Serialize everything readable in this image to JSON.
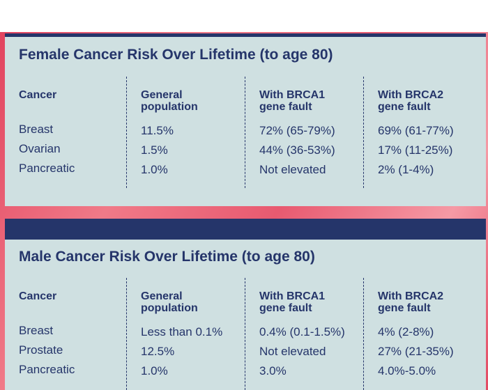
{
  "female": {
    "title": "Female Cancer Risk Over Lifetime (to age 80)",
    "headers": [
      "Cancer",
      "General population",
      "With BRCA1 gene fault",
      "With BRCA2 gene fault"
    ],
    "rows": [
      {
        "cancer": "Breast",
        "general": "11.5%",
        "brca1": "72% (65-79%)",
        "brca2": "69% (61-77%)"
      },
      {
        "cancer": "Ovarian",
        "general": "1.5%",
        "brca1": "44% (36-53%)",
        "brca2": "17% (11-25%)"
      },
      {
        "cancer": "Pancreatic",
        "general": "1.0%",
        "brca1": "Not elevated",
        "brca2": "2% (1-4%)"
      }
    ]
  },
  "male": {
    "title": "Male Cancer Risk Over Lifetime (to age 80)",
    "headers": [
      "Cancer",
      "General population",
      "With BRCA1 gene fault",
      "With BRCA2 gene fault"
    ],
    "rows": [
      {
        "cancer": "Breast",
        "general": "Less than 0.1%",
        "brca1": "0.4% (0.1-1.5%)",
        "brca2": "4% (2-8%)"
      },
      {
        "cancer": "Prostate",
        "general": "12.5%",
        "brca1": "Not elevated",
        "brca2": "27% (21-35%)"
      },
      {
        "cancer": "Pancreatic",
        "general": "1.0%",
        "brca1": "3.0%",
        "brca2": "4.0%-5.0%"
      }
    ]
  },
  "colors": {
    "navy": "#25356a",
    "panel": "#cfe0e1",
    "accent": "#e2445f"
  }
}
